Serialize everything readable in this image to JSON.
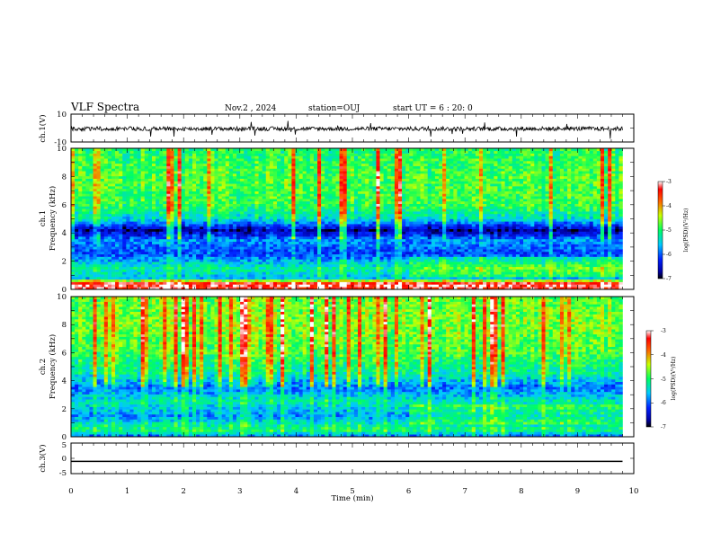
{
  "header": {
    "title": "VLF Spectra",
    "date": "Nov.2 , 2024",
    "station": "station=OUJ",
    "start_ut": "start UT = 6 : 20: 0"
  },
  "chart_data": [
    {
      "type": "line",
      "name": "ch1-waveform",
      "ylabel": "ch.1(V)",
      "yticks": [
        "10",
        "-10"
      ],
      "ylim": [
        -10,
        10
      ],
      "xlim": [
        0,
        10
      ],
      "trace": {
        "baseline": -0.5,
        "noise": 1.5,
        "ends_at": 9.8
      }
    },
    {
      "type": "heatmap",
      "name": "ch1-spectrogram",
      "ylabel": "ch.1",
      "ylabel2": "Frequency (kHz)",
      "yticks": [
        "10",
        "8",
        "6",
        "4",
        "2",
        "0"
      ],
      "ylim": [
        0,
        10
      ],
      "xlim": [
        0,
        10
      ],
      "data_end": 9.8,
      "colorbar": {
        "range": [
          -7,
          -3
        ],
        "ticks": [
          "-3",
          "-4",
          "-5",
          "-6",
          "-7"
        ],
        "label": "log(PSD)(V²/Hz)"
      },
      "profile": [
        {
          "f": 0.0,
          "v": -3.4
        },
        {
          "f": 0.4,
          "v": -3.1
        },
        {
          "f": 0.8,
          "v": -5.6
        },
        {
          "f": 1.5,
          "v": -5.2
        },
        {
          "f": 2.5,
          "v": -6.1
        },
        {
          "f": 3.5,
          "v": -5.8
        },
        {
          "f": 4.2,
          "v": -6.7
        },
        {
          "f": 5.0,
          "v": -5.4
        },
        {
          "f": 6.0,
          "v": -4.9
        },
        {
          "f": 8.0,
          "v": -4.8
        },
        {
          "f": 10.0,
          "v": -5.0
        }
      ]
    },
    {
      "type": "heatmap",
      "name": "ch2-spectrogram",
      "ylabel": "ch.2",
      "ylabel2": "Frequency (kHz)",
      "yticks": [
        "10",
        "8",
        "6",
        "4",
        "2",
        "0"
      ],
      "ylim": [
        0,
        10
      ],
      "xlim": [
        0,
        10
      ],
      "data_end": 9.8,
      "colorbar": {
        "range": [
          -7,
          -3
        ],
        "ticks": [
          "-3",
          "-4",
          "-5",
          "-6",
          "-7"
        ],
        "label": "log(PSD)(V²/Hz)"
      },
      "profile": [
        {
          "f": 0.0,
          "v": -6.0
        },
        {
          "f": 0.5,
          "v": -5.0
        },
        {
          "f": 1.5,
          "v": -5.8
        },
        {
          "f": 2.5,
          "v": -5.3
        },
        {
          "f": 3.5,
          "v": -5.9
        },
        {
          "f": 4.5,
          "v": -5.2
        },
        {
          "f": 6.0,
          "v": -4.8
        },
        {
          "f": 8.0,
          "v": -4.6
        },
        {
          "f": 10.0,
          "v": -4.7
        }
      ]
    },
    {
      "type": "line",
      "name": "ch3-waveform",
      "ylabel": "ch.3(V)",
      "yticks": [
        "5",
        "0",
        "-5"
      ],
      "ylim": [
        -5,
        5
      ],
      "xlim": [
        0,
        10
      ],
      "trace": {
        "baseline": -1.0,
        "noise": 0,
        "ends_at": 9.8
      }
    }
  ],
  "xaxis": {
    "label": "Time (min)",
    "ticks": [
      "0",
      "1",
      "2",
      "3",
      "4",
      "5",
      "6",
      "7",
      "8",
      "9",
      "10"
    ],
    "range": [
      0,
      10
    ]
  }
}
